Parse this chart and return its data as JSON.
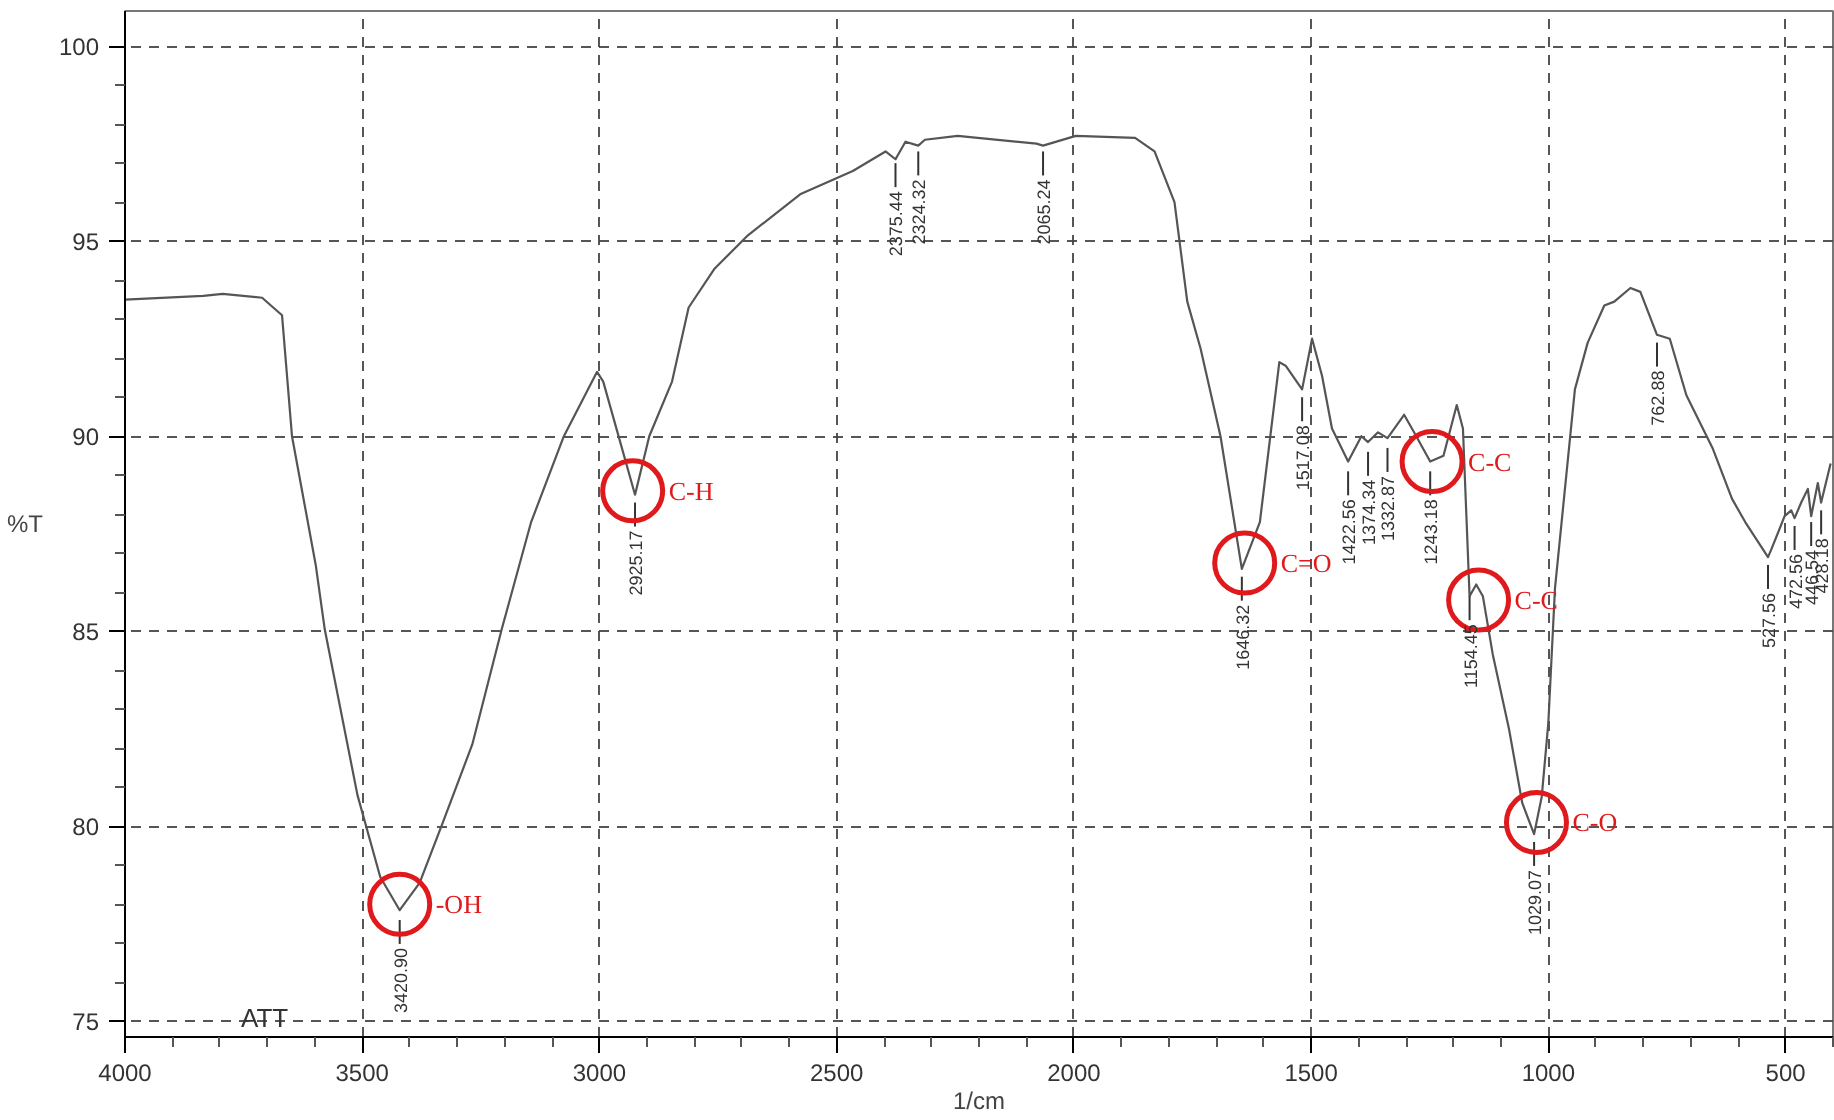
{
  "chart_data": {
    "type": "line",
    "xlabel": "1/cm",
    "ylabel": "%T",
    "xlim": [
      4000,
      400
    ],
    "ylim": [
      74.6,
      100.9
    ],
    "xticks": [
      4000,
      3500,
      3000,
      2500,
      2000,
      1500,
      1000,
      500
    ],
    "yticks": [
      75,
      80,
      85,
      90,
      95,
      100
    ],
    "grid": true,
    "marker": "none",
    "line_style": "solid",
    "series": [
      {
        "color": "#555555",
        "x": [
          4000,
          3835,
          3794,
          3711,
          3669,
          3648,
          3598,
          3579,
          3510,
          3462,
          3421,
          3379,
          3330,
          3268,
          3206,
          3144,
          3075,
          3005,
          2992,
          2925,
          2895,
          2847,
          2812,
          2757,
          2687,
          2577,
          2466,
          2397,
          2376,
          2355,
          2328,
          2314,
          2245,
          2079,
          2065,
          1996,
          1871,
          1830,
          1788,
          1761,
          1733,
          1691,
          1646,
          1608,
          1567,
          1553,
          1519,
          1498,
          1477,
          1456,
          1422,
          1394,
          1380,
          1359,
          1339,
          1304,
          1283,
          1249,
          1221,
          1193,
          1180,
          1166,
          1152,
          1138,
          1117,
          1083,
          1055,
          1030,
          1014,
          1000,
          986,
          972,
          944,
          917,
          882,
          861,
          827,
          806,
          771,
          744,
          709,
          654,
          613,
          585,
          537,
          530,
          502,
          488,
          481,
          467,
          453,
          446,
          432,
          425,
          405
        ],
        "values": [
          93.5,
          93.6,
          93.65,
          93.55,
          93.1,
          90.0,
          86.7,
          85.05,
          80.8,
          78.7,
          77.85,
          78.55,
          80.1,
          82.1,
          85.05,
          87.8,
          90.0,
          91.65,
          91.4,
          88.5,
          90.0,
          91.4,
          93.3,
          94.3,
          95.15,
          96.2,
          96.8,
          97.3,
          97.1,
          97.55,
          97.45,
          97.6,
          97.7,
          97.5,
          97.45,
          97.7,
          97.65,
          97.3,
          96.0,
          93.45,
          92.25,
          90.0,
          86.6,
          87.8,
          91.9,
          91.8,
          91.2,
          92.5,
          91.55,
          90.2,
          89.35,
          90.0,
          89.85,
          90.1,
          89.95,
          90.55,
          90.1,
          89.35,
          89.5,
          90.8,
          90.2,
          85.9,
          86.2,
          85.9,
          84.4,
          82.5,
          80.6,
          79.8,
          80.75,
          82.65,
          86.1,
          87.8,
          91.2,
          92.4,
          93.35,
          93.45,
          93.8,
          93.7,
          92.6,
          92.5,
          91.05,
          89.7,
          88.4,
          87.8,
          86.9,
          87.1,
          87.95,
          88.1,
          87.9,
          88.3,
          88.65,
          87.95,
          88.8,
          88.3,
          89.3
        ]
      }
    ],
    "annotations": [
      "ATT",
      {
        "text": "3420.90",
        "x": 3421,
        "y": 77.6
      },
      {
        "text": "2925.17",
        "x": 2925,
        "y": 88.3
      },
      {
        "text": "2375.44",
        "x": 2376,
        "y": 97.0
      },
      {
        "text": "2324.32",
        "x": 2328,
        "y": 97.3
      },
      {
        "text": "2065.24",
        "x": 2065,
        "y": 97.3
      },
      {
        "text": "1646.32",
        "x": 1646,
        "y": 86.4
      },
      {
        "text": "1517.08",
        "x": 1519,
        "y": 91.0
      },
      {
        "text": "1422.56",
        "x": 1422,
        "y": 89.1
      },
      {
        "text": "1374.34",
        "x": 1380,
        "y": 89.6
      },
      {
        "text": "1332.87",
        "x": 1339,
        "y": 89.7
      },
      {
        "text": "1243.18",
        "x": 1249,
        "y": 89.1
      },
      {
        "text": "1154.45",
        "x": 1166,
        "y": 85.9
      },
      {
        "text": "1029.07",
        "x": 1030,
        "y": 79.6
      },
      {
        "text": "762.88",
        "x": 771,
        "y": 92.4
      },
      {
        "text": "527.56",
        "x": 537,
        "y": 86.7
      },
      {
        "text": "472.56",
        "x": 481,
        "y": 87.7
      },
      {
        "text": "446.54",
        "x": 446,
        "y": 87.8
      },
      {
        "text": "428.18",
        "x": 425,
        "y": 88.1
      },
      {
        "text": "-OH",
        "x": 3421,
        "y": 78.0
      },
      {
        "text": "C-H",
        "x": 2930,
        "y": 88.6
      },
      {
        "text": "C=O",
        "x": 1640,
        "y": 86.75
      },
      {
        "text": "C-C",
        "x": 1245,
        "y": 89.35
      },
      {
        "text": "C-C",
        "x": 1147,
        "y": 85.8
      },
      {
        "text": "C-O",
        "x": 1025,
        "y": 80.1
      }
    ]
  }
}
